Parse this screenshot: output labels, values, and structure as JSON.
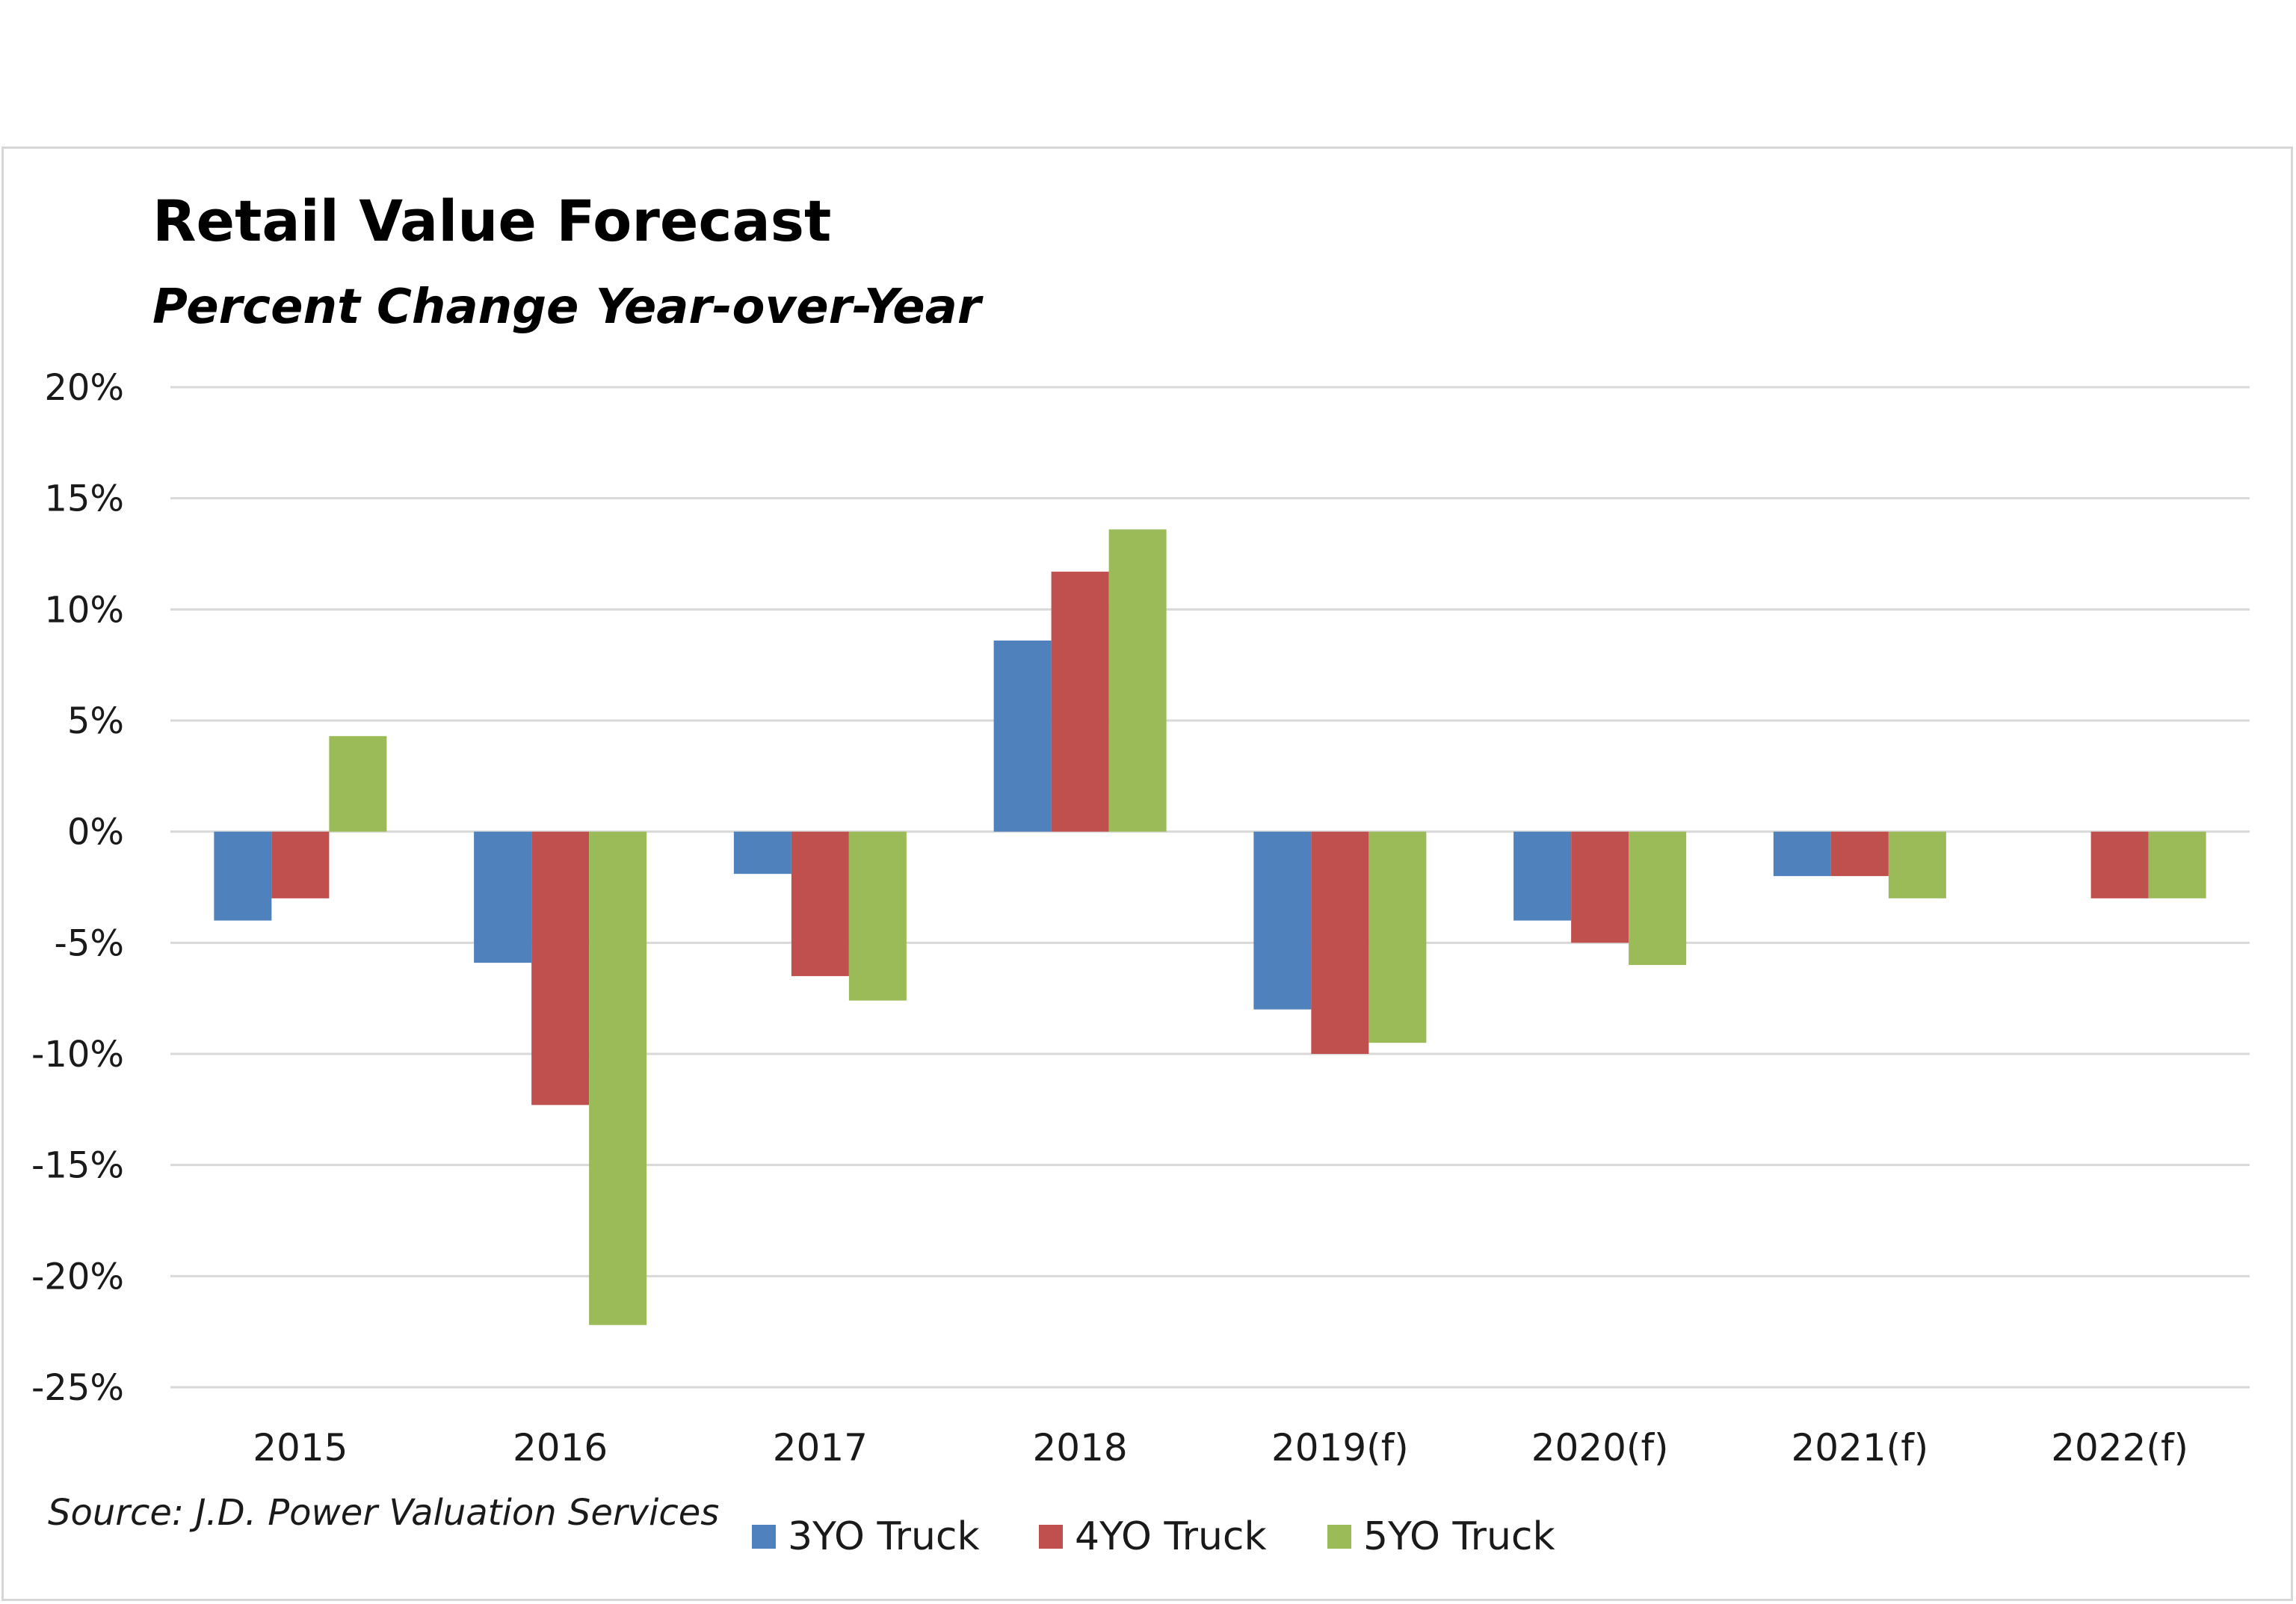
{
  "chart_data": {
    "type": "bar",
    "title": "Retail Value Forecast",
    "subtitle": "Percent Change Year-over-Year",
    "source": "Source: J.D. Power Valuation Services",
    "categories": [
      "2015",
      "2016",
      "2017",
      "2018",
      "2019(f)",
      "2020(f)",
      "2021(f)",
      "2022(f)"
    ],
    "series": [
      {
        "name": "3YO Truck",
        "color": "#4f81bd",
        "values": [
          -4.0,
          -5.9,
          -1.9,
          8.6,
          -8.0,
          -4.0,
          -2.0,
          null
        ]
      },
      {
        "name": "4YO Truck",
        "color": "#c0504d",
        "values": [
          -3.0,
          -12.3,
          -6.5,
          11.7,
          -10.0,
          -5.0,
          -2.0,
          -3.0
        ]
      },
      {
        "name": "5YO Truck",
        "color": "#9bbb59",
        "values": [
          4.3,
          -22.2,
          -7.6,
          13.6,
          -9.5,
          -6.0,
          -3.0,
          -3.0
        ]
      }
    ],
    "ylim": [
      -25,
      20
    ],
    "yticks": [
      20,
      15,
      10,
      5,
      0,
      -5,
      -10,
      -15,
      -20,
      -25
    ],
    "yticks_labels": [
      "20%",
      "15%",
      "10%",
      "5%",
      "0%",
      "-5%",
      "-10%",
      "-15%",
      "-20%",
      "-25%"
    ],
    "grid": true,
    "legend_position": "bottom"
  }
}
